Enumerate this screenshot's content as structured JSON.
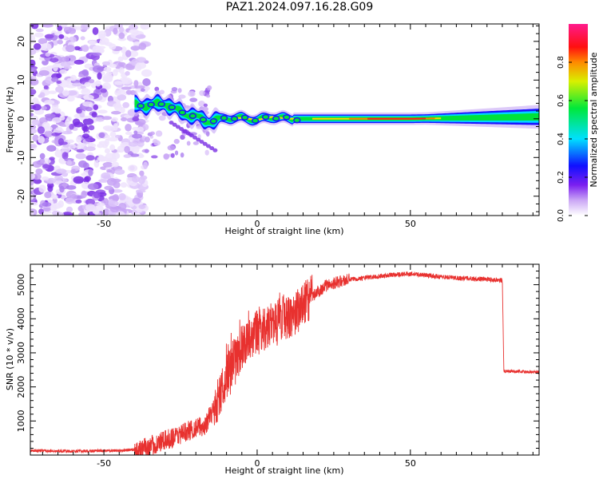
{
  "title": "PAZ1.2024.097.16.28.G09",
  "chart_data": [
    {
      "type": "heatmap",
      "xlabel": "Height of straight line (km)",
      "ylabel": "Frequency (Hz)",
      "xlim": [
        -74,
        92
      ],
      "ylim": [
        -25,
        24.5
      ],
      "xticks": [
        -50,
        0,
        50
      ],
      "yticks": [
        -20,
        -10,
        0,
        10,
        20
      ],
      "colorbar": {
        "label": "Normalized spectral amplitude",
        "range": [
          0,
          1
        ],
        "ticks": [
          0.0,
          0.2,
          0.4,
          0.6,
          0.8
        ],
        "colormap": "white-violet-blue-cyan-green-yellow-red-magenta"
      },
      "ridge": [
        {
          "x": -40,
          "f": 3.5
        },
        {
          "x": -35,
          "f": 3.5
        },
        {
          "x": -30,
          "f": 4.0
        },
        {
          "x": -27,
          "f": 2.5
        },
        {
          "x": -24,
          "f": 1.5
        },
        {
          "x": -20,
          "f": 0.5
        },
        {
          "x": -17,
          "f": -0.5
        },
        {
          "x": -14,
          "f": -0.5
        },
        {
          "x": -10,
          "f": 0.2
        },
        {
          "x": -5,
          "f": 0.2
        },
        {
          "x": 0,
          "f": -0.3
        },
        {
          "x": 5,
          "f": 0.5
        },
        {
          "x": 10,
          "f": 0.0
        },
        {
          "x": 20,
          "f": 0.0
        },
        {
          "x": 50,
          "f": 0.0
        },
        {
          "x": 92,
          "f": 0.5
        }
      ]
    },
    {
      "type": "line",
      "xlabel": "Height of straight line (km)",
      "ylabel": "SNR (10 * v/v)",
      "xlim": [
        -74,
        92
      ],
      "ylim": [
        0,
        5600
      ],
      "xticks": [
        -50,
        0,
        50
      ],
      "yticks": [
        1000,
        2000,
        3000,
        4000,
        5000
      ],
      "color": "#e8312f",
      "series": [
        {
          "x": [
            -74,
            -60,
            -45,
            -38,
            -32,
            -28,
            -24,
            -20,
            -17,
            -14,
            -12,
            -10,
            -8,
            -6,
            -4,
            -2,
            0,
            2,
            4,
            6,
            8,
            10,
            12,
            14,
            16,
            18,
            20,
            22,
            25,
            30,
            35,
            40,
            45,
            50,
            55,
            60,
            65,
            70,
            75,
            80,
            80.5,
            85,
            92
          ],
          "y": [
            130,
            110,
            130,
            170,
            350,
            500,
            650,
            800,
            850,
            1400,
            1800,
            2300,
            2700,
            3000,
            3300,
            3500,
            3600,
            3700,
            3800,
            3900,
            4000,
            4050,
            4150,
            4300,
            4500,
            4650,
            4800,
            4950,
            5050,
            5150,
            5200,
            5250,
            5300,
            5320,
            5280,
            5230,
            5200,
            5180,
            5160,
            5130,
            2450,
            2450,
            2430
          ]
        }
      ]
    }
  ]
}
